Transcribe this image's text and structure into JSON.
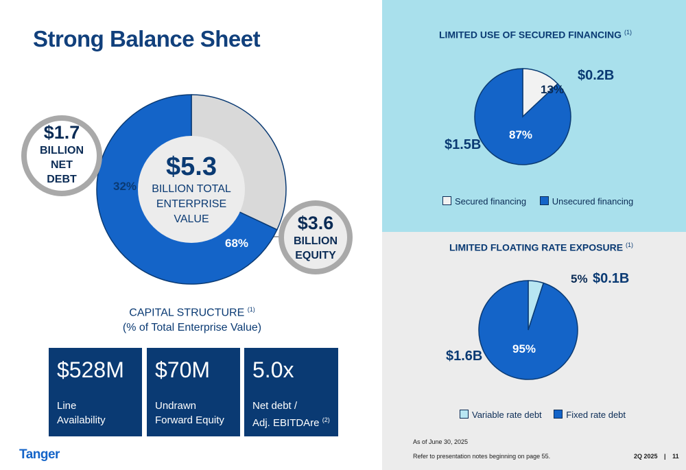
{
  "title": "Strong Balance Sheet",
  "left": {
    "net_debt": {
      "value": "$1.7",
      "line1": "BILLION",
      "line2": "NET",
      "line3": "DEBT"
    },
    "equity": {
      "value": "$3.6",
      "line1": "BILLION",
      "line2": "EQUITY"
    },
    "center": {
      "value": "$5.3",
      "line1": "BILLION TOTAL",
      "line2": "ENTERPRISE",
      "line3": "VALUE"
    },
    "caption_line1": "CAPITAL STRUCTURE",
    "caption_sup": "(1)",
    "caption_line2": "(% of Total Enterprise Value)"
  },
  "stats": [
    {
      "value": "$528M",
      "line1": "Line",
      "line2": "Availability",
      "sup": ""
    },
    {
      "value": "$70M",
      "line1": "Undrawn",
      "line2": "Forward Equity",
      "sup": ""
    },
    {
      "value": "5.0x",
      "line1": "Net debt /",
      "line2": "Adj. EBITDAre",
      "sup": "(2)"
    }
  ],
  "secured_panel": {
    "title": "LIMITED USE OF SECURED FINANCING",
    "sup": "(1)",
    "amount_small": "$0.2B",
    "amount_large": "$1.5B"
  },
  "floating_panel": {
    "title": "LIMITED FLOATING RATE EXPOSURE",
    "sup": "(1)",
    "amount_small": "$0.1B",
    "amount_large": "$1.6B"
  },
  "colors": {
    "navy": "#0a3a73",
    "blue": "#1464c8",
    "light_gray": "#d9d9d9",
    "light_blue": "#b8e6f2",
    "panel_cyan": "#a9e0ec",
    "panel_gray": "#ececec"
  },
  "chart_data": [
    {
      "type": "pie",
      "title": "CAPITAL STRUCTURE (1)",
      "subtitle": "(% of Total Enterprise Value)",
      "donut": true,
      "categories": [
        "Net Debt",
        "Equity"
      ],
      "values": [
        32,
        68
      ],
      "labels": [
        "32%",
        "68%"
      ]
    },
    {
      "type": "pie",
      "title": "LIMITED USE OF SECURED FINANCING (1)",
      "categories": [
        "Secured financing",
        "Unsecured financing"
      ],
      "values": [
        13,
        87
      ],
      "labels": [
        "13%",
        "87%"
      ]
    },
    {
      "type": "pie",
      "title": "LIMITED FLOATING RATE EXPOSURE (1)",
      "categories": [
        "Variable rate debt",
        "Fixed rate debt"
      ],
      "values": [
        5,
        95
      ],
      "labels": [
        "5%",
        "95%"
      ]
    }
  ],
  "footer": {
    "asof": "As of June 30, 2025",
    "note": "Refer to presentation notes beginning on page 55.",
    "period": "2Q 2025",
    "sep": "|",
    "page": "11",
    "logo": "Tanger"
  }
}
